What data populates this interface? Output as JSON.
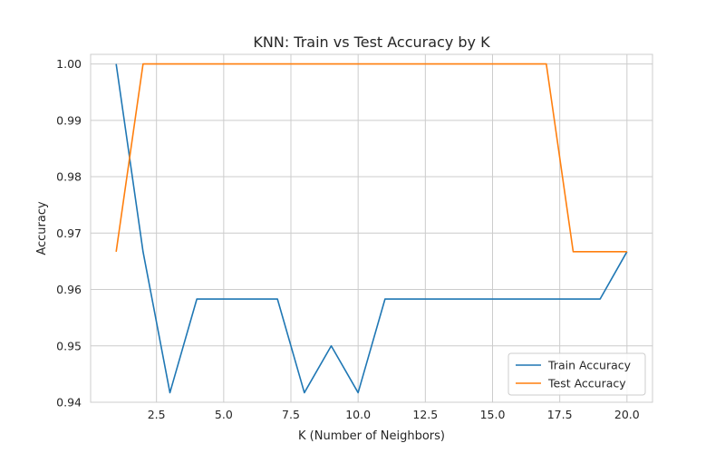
{
  "chart_data": {
    "type": "line",
    "title": "KNN: Train vs Test Accuracy by K",
    "xlabel": "K (Number of Neighbors)",
    "ylabel": "Accuracy",
    "x": [
      1,
      2,
      3,
      4,
      5,
      6,
      7,
      8,
      9,
      10,
      11,
      12,
      13,
      14,
      15,
      16,
      17,
      18,
      19,
      20
    ],
    "series": [
      {
        "name": "Train Accuracy",
        "color": "#1f77b4",
        "values": [
          1.0,
          0.9667,
          0.9417,
          0.9583,
          0.9583,
          0.9583,
          0.9583,
          0.9417,
          0.95,
          0.9417,
          0.9583,
          0.9583,
          0.9583,
          0.9583,
          0.9583,
          0.9583,
          0.9583,
          0.9583,
          0.9583,
          0.9667
        ]
      },
      {
        "name": "Test Accuracy",
        "color": "#ff7f0e",
        "values": [
          0.9667,
          1.0,
          1.0,
          1.0,
          1.0,
          1.0,
          1.0,
          1.0,
          1.0,
          1.0,
          1.0,
          1.0,
          1.0,
          1.0,
          1.0,
          1.0,
          1.0,
          0.9667,
          0.9667,
          0.9667
        ]
      }
    ],
    "xlim": [
      0.05,
      20.95
    ],
    "ylim": [
      0.94,
      1.0017
    ],
    "xticks": [
      2.5,
      5.0,
      7.5,
      10.0,
      12.5,
      15.0,
      17.5,
      20.0
    ],
    "xtick_labels": [
      "2.5",
      "5.0",
      "7.5",
      "10.0",
      "12.5",
      "15.0",
      "17.5",
      "20.0"
    ],
    "yticks": [
      0.94,
      0.95,
      0.96,
      0.97,
      0.98,
      0.99,
      1.0
    ],
    "ytick_labels": [
      "0.94",
      "0.95",
      "0.96",
      "0.97",
      "0.98",
      "0.99",
      "1.00"
    ],
    "grid": true,
    "legend_position": "bottom-right"
  }
}
